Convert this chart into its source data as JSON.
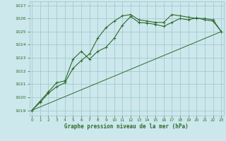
{
  "line1_x": [
    0,
    1,
    2,
    3,
    4,
    5,
    6,
    7,
    8,
    9,
    10,
    11,
    12,
    13,
    14,
    15,
    16,
    17,
    18,
    19,
    20,
    21,
    22,
    23
  ],
  "line1_y": [
    1019.0,
    1019.6,
    1020.3,
    1020.8,
    1021.1,
    1022.2,
    1022.8,
    1023.3,
    1024.5,
    1025.3,
    1025.8,
    1026.2,
    1026.3,
    1025.9,
    1025.8,
    1025.7,
    1025.7,
    1026.3,
    1026.2,
    1026.1,
    1026.0,
    1026.0,
    1025.9,
    1025.0
  ],
  "line2_x": [
    0,
    1,
    2,
    3,
    4,
    5,
    6,
    7,
    8,
    9,
    10,
    11,
    12,
    13,
    14,
    15,
    16,
    17,
    18,
    19,
    20,
    21,
    22,
    23
  ],
  "line2_y": [
    1019.0,
    1019.7,
    1020.4,
    1021.1,
    1021.25,
    1022.9,
    1023.5,
    1022.9,
    1023.5,
    1023.8,
    1024.5,
    1025.5,
    1026.15,
    1025.7,
    1025.65,
    1025.55,
    1025.4,
    1025.7,
    1026.0,
    1025.9,
    1026.05,
    1025.9,
    1025.8,
    1025.0
  ],
  "line3_x": [
    0,
    23
  ],
  "line3_y": [
    1019.0,
    1025.0
  ],
  "line_color": "#2d6b2d",
  "bg_color": "#cce8ec",
  "grid_color": "#9dc4ca",
  "xlabel": "Graphe pression niveau de la mer (hPa)",
  "ylim": [
    1018.6,
    1027.3
  ],
  "xlim": [
    -0.3,
    23.3
  ],
  "yticks": [
    1019,
    1020,
    1021,
    1022,
    1023,
    1024,
    1025,
    1026,
    1027
  ],
  "xticks": [
    0,
    1,
    2,
    3,
    4,
    5,
    6,
    7,
    8,
    9,
    10,
    11,
    12,
    13,
    14,
    15,
    16,
    17,
    18,
    19,
    20,
    21,
    22,
    23
  ]
}
